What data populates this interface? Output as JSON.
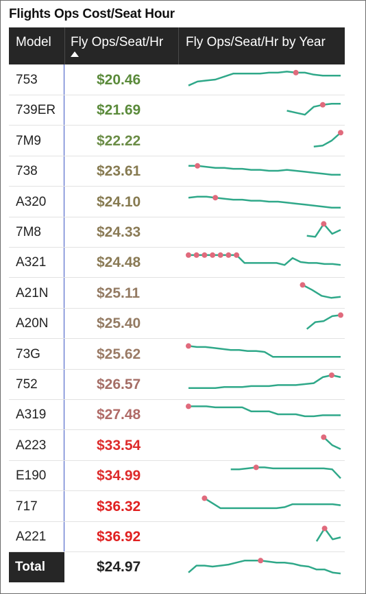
{
  "title": "Flights Ops Cost/Seat Hour",
  "columns": {
    "model": "Model",
    "cost": "Fly Ops/Seat/Hr",
    "trend": "Fly Ops/Seat/Hr by Year"
  },
  "sort": {
    "column": "Fly Ops/Seat/Hr",
    "direction": "ascending",
    "icon": "triangle-up-icon"
  },
  "colors": {
    "sparkline": "#2fa889",
    "marker": "#e06a7c",
    "header_bg": "#262626",
    "divider": "#3b55c4"
  },
  "total": {
    "label": "Total",
    "value": "$24.97"
  },
  "chart_data": {
    "type": "table",
    "rows": [
      {
        "model": "753",
        "value": "$20.46",
        "color": "#5a8a3a",
        "trend": [
          3,
          7,
          8,
          9,
          12,
          15,
          15,
          15,
          15,
          16,
          16,
          17,
          16,
          16,
          14,
          13,
          13,
          13
        ],
        "markers": [
          12
        ]
      },
      {
        "model": "739ER",
        "value": "$21.69",
        "color": "#5a8a3a",
        "trend": [
          null,
          null,
          null,
          null,
          null,
          null,
          null,
          null,
          null,
          null,
          null,
          8,
          6,
          4,
          12,
          14,
          15,
          15
        ],
        "markers": [
          15
        ]
      },
      {
        "model": "7M9",
        "value": "$22.22",
        "color": "#6a8c45",
        "trend": [
          null,
          null,
          null,
          null,
          null,
          null,
          null,
          null,
          null,
          null,
          null,
          null,
          null,
          null,
          3,
          4,
          9,
          17
        ],
        "markers": [
          17
        ]
      },
      {
        "model": "738",
        "value": "$23.61",
        "color": "#867a50",
        "trend": [
          14,
          14,
          13,
          12,
          12,
          11,
          11,
          10,
          10,
          9,
          9,
          10,
          9,
          8,
          7,
          6,
          5,
          5
        ],
        "markers": [
          1
        ]
      },
      {
        "model": "A320",
        "value": "$24.10",
        "color": "#867a50",
        "trend": [
          13,
          14,
          14,
          13,
          12,
          11,
          11,
          10,
          10,
          9,
          9,
          8,
          7,
          6,
          5,
          4,
          3,
          3
        ],
        "markers": [
          3
        ]
      },
      {
        "model": "7M8",
        "value": "$24.33",
        "color": "#8a7a55",
        "trend": [
          null,
          null,
          null,
          null,
          null,
          null,
          null,
          null,
          null,
          null,
          null,
          null,
          null,
          null,
          5,
          4,
          17,
          7,
          11
        ],
        "markers": [
          16
        ]
      },
      {
        "model": "A321",
        "value": "$24.48",
        "color": "#8a7a55",
        "trend": [
          16,
          16,
          16,
          16,
          16,
          16,
          16,
          8,
          8,
          8,
          8,
          8,
          6,
          13,
          9,
          8,
          8,
          7,
          7,
          6
        ],
        "markers": [
          0,
          1,
          2,
          3,
          4,
          5,
          6
        ]
      },
      {
        "model": "A21N",
        "value": "$25.11",
        "color": "#937a62",
        "trend": [
          null,
          null,
          null,
          null,
          null,
          null,
          null,
          null,
          null,
          null,
          null,
          null,
          17,
          12,
          6,
          4,
          5
        ],
        "markers": [
          12
        ]
      },
      {
        "model": "A20N",
        "value": "$25.40",
        "color": "#937a62",
        "trend": [
          null,
          null,
          null,
          null,
          null,
          null,
          null,
          null,
          null,
          null,
          null,
          null,
          null,
          null,
          3,
          10,
          11,
          16,
          17
        ],
        "markers": [
          18
        ]
      },
      {
        "model": "73G",
        "value": "$25.62",
        "color": "#9a7a65",
        "trend": [
          17,
          16,
          16,
          15,
          14,
          13,
          13,
          12,
          12,
          11,
          6,
          6,
          6,
          6,
          6,
          6,
          6,
          6,
          6
        ],
        "markers": [
          0
        ]
      },
      {
        "model": "752",
        "value": "$26.57",
        "color": "#a56e66",
        "trend": [
          5,
          5,
          5,
          5,
          6,
          6,
          6,
          7,
          7,
          7,
          8,
          8,
          8,
          9,
          10,
          16,
          18,
          16
        ],
        "markers": [
          16
        ]
      },
      {
        "model": "A319",
        "value": "$27.48",
        "color": "#b06a66",
        "trend": [
          17,
          17,
          17,
          16,
          16,
          16,
          16,
          12,
          12,
          12,
          9,
          9,
          9,
          7,
          7,
          8,
          8,
          8
        ],
        "markers": [
          0
        ]
      },
      {
        "model": "A223",
        "value": "$33.54",
        "color": "#dd2b2b",
        "trend": [
          null,
          null,
          null,
          null,
          null,
          null,
          null,
          null,
          null,
          null,
          null,
          null,
          null,
          null,
          null,
          null,
          17,
          9,
          5
        ],
        "markers": [
          16
        ]
      },
      {
        "model": "E190",
        "value": "$34.99",
        "color": "#dd2b2b",
        "trend": [
          null,
          null,
          null,
          null,
          null,
          15,
          15,
          16,
          17,
          17,
          16,
          16,
          16,
          16,
          16,
          16,
          16,
          15,
          6
        ],
        "markers": [
          8
        ]
      },
      {
        "model": "717",
        "value": "$36.32",
        "color": "#e02020",
        "trend": [
          null,
          null,
          17,
          12,
          7,
          7,
          7,
          7,
          7,
          7,
          7,
          7,
          8,
          11,
          11,
          11,
          11,
          11,
          11,
          10
        ],
        "markers": [
          2
        ]
      },
      {
        "model": "A221",
        "value": "$36.92",
        "color": "#e02020",
        "trend": [
          null,
          null,
          null,
          null,
          null,
          null,
          null,
          null,
          null,
          null,
          null,
          null,
          null,
          null,
          null,
          null,
          4,
          17,
          6,
          8
        ],
        "markers": [
          17
        ]
      }
    ],
    "total": {
      "model": "Total",
      "value": "$24.97",
      "trend": [
        3,
        10,
        10,
        9,
        10,
        11,
        13,
        15,
        15,
        15,
        14,
        13,
        13,
        12,
        10,
        9,
        6,
        6,
        3,
        2
      ],
      "markers": [
        9
      ]
    }
  }
}
